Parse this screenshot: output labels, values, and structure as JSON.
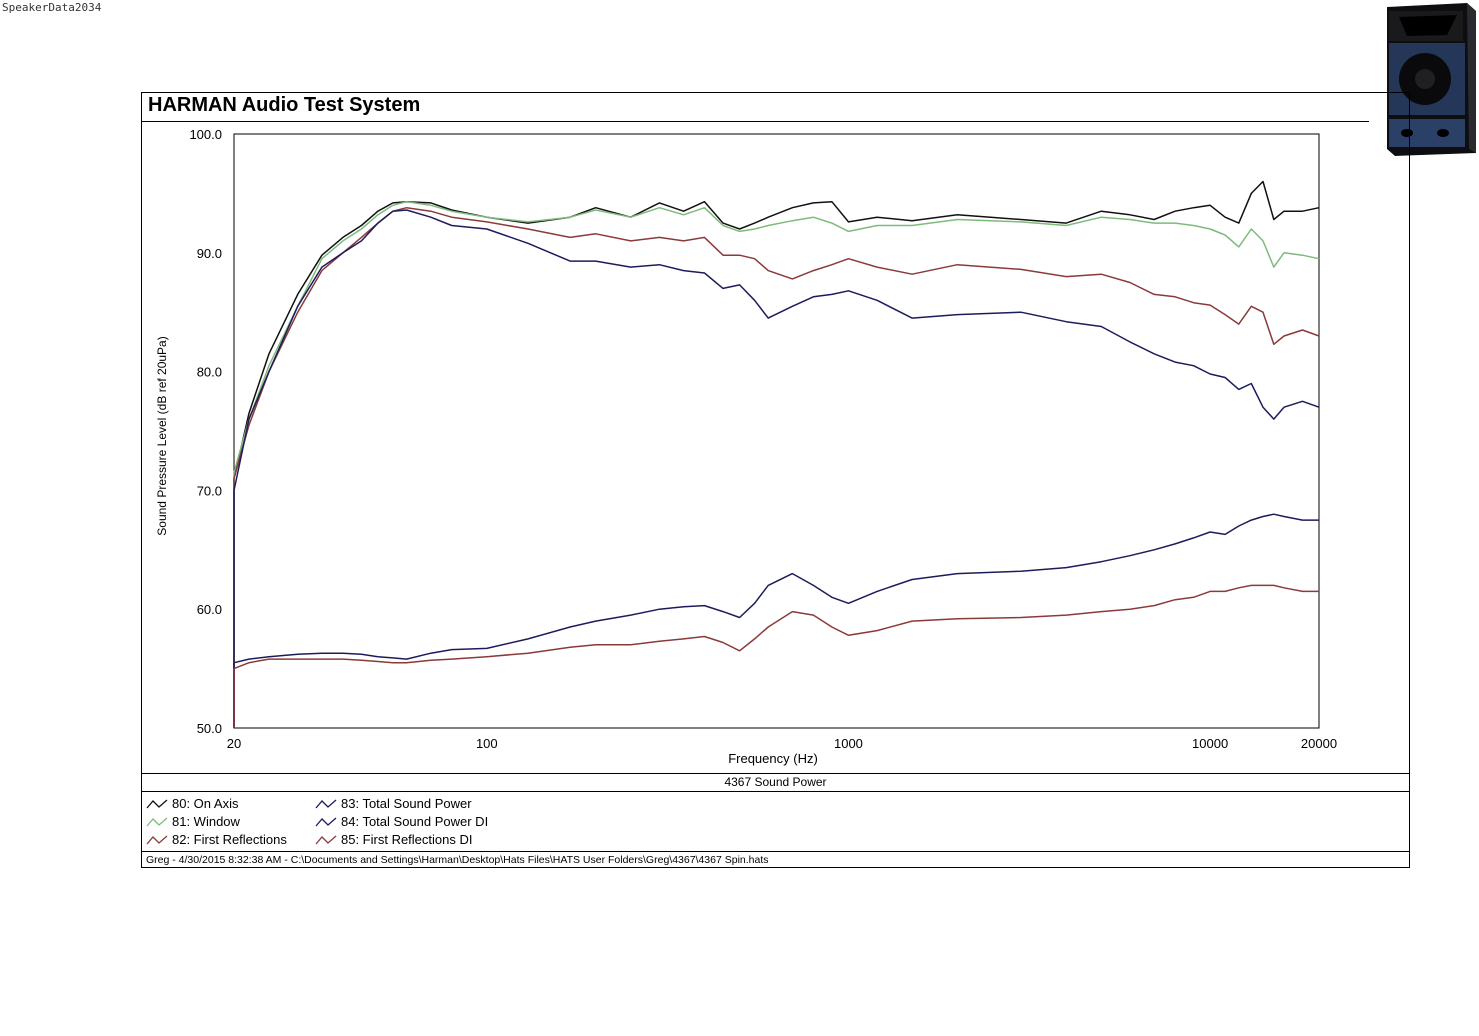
{
  "watermark": "SpeakerData2034",
  "header": {
    "title": "HARMAN Audio Test System"
  },
  "colors": {
    "on_axis": "#111111",
    "window": "#7dbb7d",
    "first_reflections": "#8b3a3a",
    "sound_power": "#1c1c5c",
    "sound_power_di": "#1c1c5c",
    "first_reflections_di": "#8b3a3a"
  },
  "chart_data": {
    "type": "line",
    "title": "4367 Sound Power",
    "xlabel": "Frequency (Hz)",
    "ylabel": "Sound Pressure Level (dB ref 20uPa)",
    "xscale": "log",
    "xlim": [
      20,
      20000
    ],
    "ylim": [
      50,
      100
    ],
    "xticks": [
      "20",
      "100",
      "1000",
      "10000",
      "20000"
    ],
    "yticks": [
      "50.0",
      "60.0",
      "70.0",
      "80.0",
      "90.0",
      "100.0"
    ],
    "grid": true,
    "legend_position": "bottom",
    "x": [
      20,
      22,
      25,
      30,
      35,
      40,
      45,
      50,
      55,
      60,
      70,
      80,
      100,
      130,
      170,
      200,
      250,
      300,
      350,
      400,
      450,
      500,
      550,
      600,
      700,
      800,
      900,
      1000,
      1200,
      1500,
      2000,
      3000,
      4000,
      5000,
      6000,
      7000,
      8000,
      9000,
      10000,
      11000,
      12000,
      13000,
      14000,
      15000,
      16000,
      18000,
      20000
    ],
    "series": [
      {
        "name": "80: On Axis",
        "color": "#111111",
        "values": [
          71.0,
          76.5,
          81.5,
          86.5,
          89.8,
          91.3,
          92.3,
          93.5,
          94.2,
          94.3,
          94.2,
          93.6,
          93.0,
          92.5,
          93.0,
          93.8,
          93.0,
          94.2,
          93.5,
          94.3,
          92.5,
          92.0,
          92.5,
          93.0,
          93.8,
          94.2,
          94.3,
          92.6,
          93.0,
          92.7,
          93.2,
          92.8,
          92.5,
          93.5,
          93.2,
          92.8,
          93.5,
          93.8,
          94.0,
          93.0,
          92.5,
          95.0,
          96.0,
          92.8,
          93.5,
          93.5,
          93.8
        ]
      },
      {
        "name": "81: Window",
        "color": "#7dbb7d",
        "values": [
          71.5,
          76.0,
          80.5,
          85.5,
          89.5,
          91.0,
          92.0,
          93.2,
          94.0,
          94.3,
          94.0,
          93.5,
          93.0,
          92.6,
          93.0,
          93.6,
          93.0,
          93.8,
          93.2,
          93.8,
          92.3,
          91.8,
          92.0,
          92.3,
          92.7,
          93.0,
          92.5,
          91.8,
          92.3,
          92.3,
          92.8,
          92.6,
          92.3,
          93.0,
          92.8,
          92.5,
          92.5,
          92.3,
          92.0,
          91.5,
          90.5,
          92.0,
          91.0,
          88.8,
          90.0,
          89.8,
          89.5
        ]
      },
      {
        "name": "82: First Reflections",
        "color": "#8b3a3a",
        "values": [
          71.0,
          75.5,
          80.0,
          85.0,
          88.5,
          90.0,
          91.3,
          92.5,
          93.5,
          93.8,
          93.5,
          93.0,
          92.6,
          92.0,
          91.3,
          91.6,
          91.0,
          91.3,
          91.0,
          91.3,
          89.8,
          89.8,
          89.5,
          88.5,
          87.8,
          88.5,
          89.0,
          89.5,
          88.8,
          88.2,
          89.0,
          88.6,
          88.0,
          88.2,
          87.5,
          86.5,
          86.3,
          85.8,
          85.6,
          84.8,
          84.0,
          85.5,
          85.0,
          82.3,
          83.0,
          83.5,
          83.0
        ]
      },
      {
        "name": "83: Total Sound Power",
        "color": "#1c1c5c",
        "values": [
          70.0,
          76.0,
          80.0,
          85.5,
          88.8,
          90.0,
          91.0,
          92.5,
          93.5,
          93.6,
          93.0,
          92.3,
          92.0,
          90.8,
          89.3,
          89.3,
          88.8,
          89.0,
          88.5,
          88.3,
          87.0,
          87.3,
          86.0,
          84.5,
          85.5,
          86.3,
          86.5,
          86.8,
          86.0,
          84.5,
          84.8,
          85.0,
          84.2,
          83.8,
          82.5,
          81.5,
          80.8,
          80.5,
          79.8,
          79.5,
          78.5,
          79.0,
          77.0,
          76.0,
          77.0,
          77.5,
          77.0
        ]
      },
      {
        "name": "84: Total Sound Power DI",
        "color": "#1c1c5c",
        "values": [
          55.5,
          55.8,
          56.0,
          56.2,
          56.3,
          56.3,
          56.2,
          56.0,
          55.9,
          55.8,
          56.3,
          56.6,
          56.7,
          57.5,
          58.5,
          59.0,
          59.5,
          60.0,
          60.2,
          60.3,
          59.8,
          59.3,
          60.5,
          62.0,
          63.0,
          62.0,
          61.0,
          60.5,
          61.5,
          62.5,
          63.0,
          63.2,
          63.5,
          64.0,
          64.5,
          65.0,
          65.5,
          66.0,
          66.5,
          66.3,
          67.0,
          67.5,
          67.8,
          68.0,
          67.8,
          67.5,
          67.5
        ]
      },
      {
        "name": "85: First Reflections DI",
        "color": "#8b3a3a",
        "values": [
          55.0,
          55.5,
          55.8,
          55.8,
          55.8,
          55.8,
          55.7,
          55.6,
          55.5,
          55.5,
          55.7,
          55.8,
          56.0,
          56.3,
          56.8,
          57.0,
          57.0,
          57.3,
          57.5,
          57.7,
          57.2,
          56.5,
          57.5,
          58.5,
          59.8,
          59.5,
          58.5,
          57.8,
          58.2,
          59.0,
          59.2,
          59.3,
          59.5,
          59.8,
          60.0,
          60.3,
          60.8,
          61.0,
          61.5,
          61.5,
          61.8,
          62.0,
          62.0,
          62.0,
          61.8,
          61.5,
          61.5
        ]
      }
    ]
  },
  "legend": {
    "col1": [
      "80: On Axis",
      "81: Window",
      "82: First Reflections"
    ],
    "col2": [
      "83: Total Sound Power",
      "84: Total Sound Power DI",
      "85: First Reflections DI"
    ]
  },
  "footer": {
    "text": "Greg - 4/30/2015 8:32:38 AM - C:\\Documents and Settings\\Harman\\Desktop\\Hats Files\\HATS User Folders\\Greg\\4367\\4367 Spin.hats"
  }
}
